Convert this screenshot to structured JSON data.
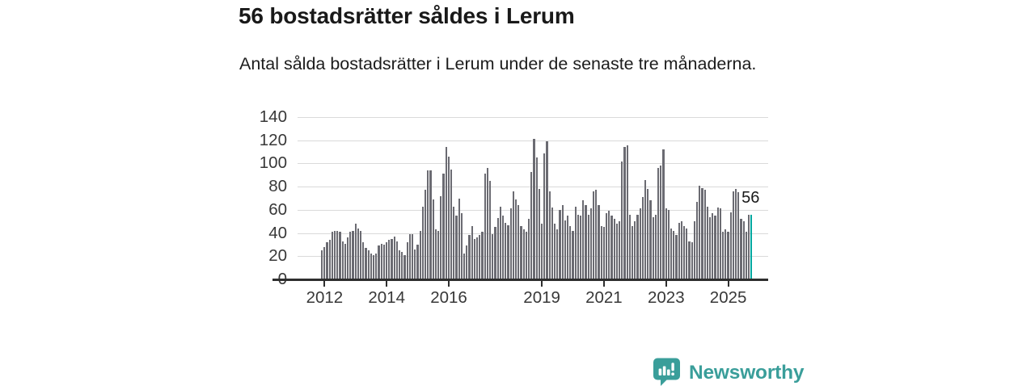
{
  "header": {
    "title": "56 bostadsrätter såldes i Lerum",
    "subtitle": "Antal sålda bostadsrätter i Lerum under de senaste tre månaderna."
  },
  "chart_data": {
    "type": "bar",
    "title": "56 bostadsrätter såldes i Lerum",
    "xlabel": "",
    "ylabel": "",
    "ylim": [
      0,
      140
    ],
    "grid": true,
    "y_ticks": [
      0,
      20,
      40,
      60,
      80,
      100,
      120,
      140
    ],
    "x_ticks": [
      {
        "label": "2012",
        "index": 1
      },
      {
        "label": "2014",
        "index": 25
      },
      {
        "label": "2016",
        "index": 49
      },
      {
        "label": "2019",
        "index": 85
      },
      {
        "label": "2021",
        "index": 109
      },
      {
        "label": "2023",
        "index": 133
      },
      {
        "label": "2025",
        "index": 157
      }
    ],
    "values": [
      25,
      28,
      32,
      34,
      41,
      42,
      42,
      41,
      33,
      31,
      36,
      41,
      42,
      48,
      44,
      42,
      32,
      27,
      25,
      22,
      21,
      22,
      29,
      31,
      30,
      32,
      34,
      35,
      37,
      33,
      25,
      24,
      21,
      32,
      39,
      39,
      26,
      30,
      42,
      63,
      77,
      94,
      94,
      69,
      43,
      42,
      72,
      91,
      114,
      106,
      95,
      63,
      55,
      70,
      57,
      22,
      29,
      38,
      46,
      35,
      36,
      38,
      41,
      91,
      96,
      85,
      39,
      45,
      53,
      63,
      55,
      49,
      47,
      61,
      76,
      69,
      64,
      46,
      43,
      41,
      52,
      93,
      121,
      105,
      78,
      48,
      109,
      119,
      76,
      62,
      48,
      43,
      60,
      64,
      51,
      55,
      46,
      42,
      63,
      56,
      55,
      68,
      64,
      56,
      61,
      76,
      77,
      64,
      46,
      45,
      57,
      59,
      55,
      52,
      48,
      50,
      102,
      114,
      116,
      56,
      46,
      50,
      56,
      61,
      71,
      86,
      78,
      68,
      54,
      56,
      96,
      98,
      112,
      61,
      60,
      44,
      42,
      38,
      49,
      50,
      46,
      44,
      33,
      32,
      50,
      67,
      81,
      79,
      77,
      63,
      54,
      57,
      55,
      62,
      61,
      41,
      43,
      41,
      58,
      76,
      78,
      75,
      52,
      50,
      41,
      56,
      56
    ],
    "bar_color": "#6b6b72",
    "highlight": {
      "index": 166,
      "value": 56,
      "label": "56",
      "color": "#00a79f"
    },
    "legend": null
  },
  "branding": {
    "name": "Newsworthy",
    "color": "#3a9e9a",
    "icon": "bar-chart-speech-bubble"
  }
}
